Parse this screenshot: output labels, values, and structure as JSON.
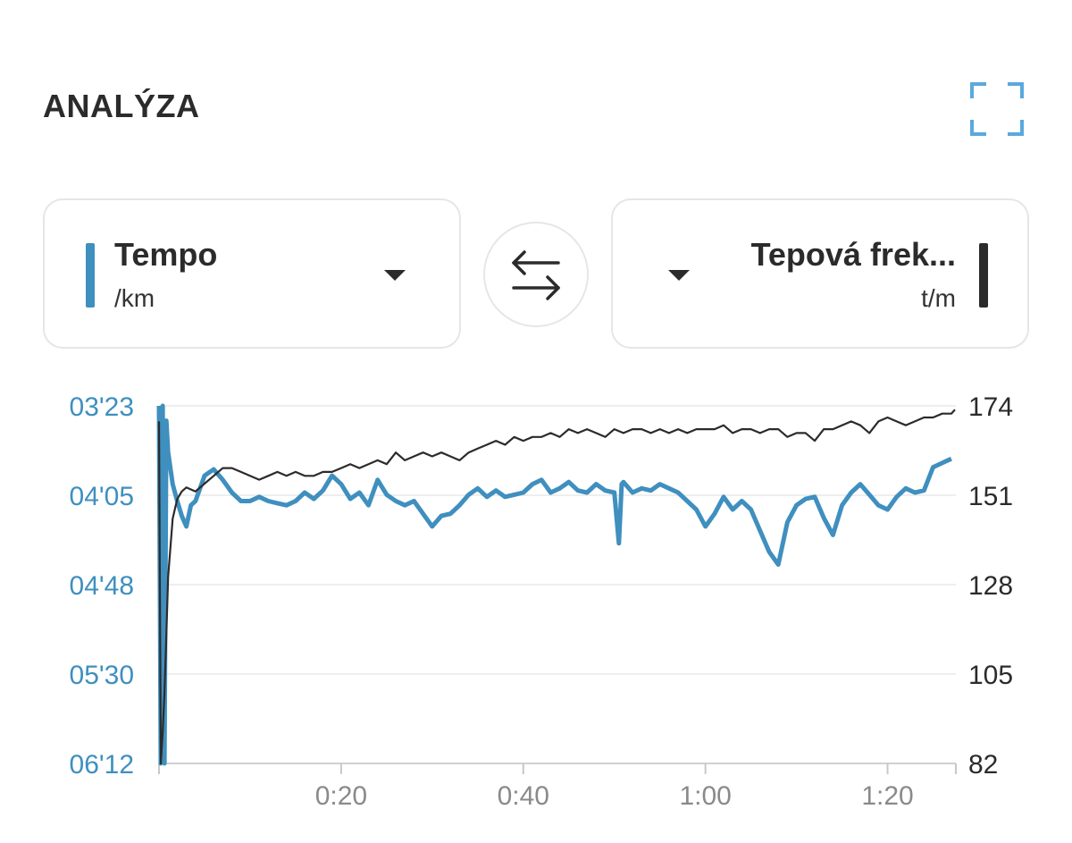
{
  "header": {
    "title": "ANALÝZA"
  },
  "icons": {
    "expand": "expand-corners-icon",
    "swap": "swap-arrows-icon",
    "dropdown": "caret-down-icon"
  },
  "colors": {
    "tempo": "#3f8fbf",
    "heart_rate": "#2b2b2b",
    "expand_icon": "#5aa9dd",
    "grid": "#e8e8e8"
  },
  "left_selector": {
    "title": "Tempo",
    "unit": "/km"
  },
  "right_selector": {
    "title": "Tepová frek...",
    "unit": "t/m"
  },
  "chart_data": {
    "type": "line",
    "x_ticks": [
      "0:20",
      "0:40",
      "1:00",
      "1:20"
    ],
    "x_tick_values_min": [
      20,
      40,
      60,
      80
    ],
    "x_range_min": [
      0,
      87.5
    ],
    "left_axis": {
      "ticks": [
        "03'23",
        "04'05",
        "04'48",
        "05'30",
        "06'12"
      ],
      "range_sec_per_km": [
        203,
        372
      ],
      "inverted": true
    },
    "right_axis": {
      "ticks": [
        "174",
        "151",
        "128",
        "105",
        "82"
      ],
      "range": [
        82,
        174
      ]
    },
    "grid": true,
    "series": [
      {
        "name": "Tempo",
        "axis": "left",
        "unit": "min/km",
        "x_min": [
          0,
          0.2,
          0.4,
          0.6,
          0.8,
          1.0,
          1.5,
          2,
          2.5,
          3,
          3.5,
          4,
          5,
          6,
          7,
          8,
          9,
          10,
          11,
          12,
          13,
          14,
          15,
          16,
          17,
          18,
          19,
          20,
          21,
          22,
          23,
          24,
          25,
          26,
          27,
          28,
          29,
          30,
          31,
          32,
          33,
          34,
          35,
          36,
          37,
          38,
          39,
          40,
          41,
          42,
          43,
          44,
          45,
          46,
          47,
          48,
          49,
          50,
          50.5,
          50.8,
          51,
          52,
          53,
          54,
          55,
          56,
          57,
          58,
          59,
          60,
          61,
          62,
          63,
          64,
          65,
          66,
          67,
          68,
          69,
          70,
          71,
          72,
          73,
          74,
          75,
          76,
          77,
          78,
          79,
          80,
          81,
          82,
          83,
          84,
          85,
          86,
          87
        ],
        "values_sec_per_km": [
          203,
          372,
          203,
          372,
          210,
          225,
          240,
          248,
          255,
          260,
          250,
          248,
          236,
          233,
          238,
          244,
          248,
          248,
          246,
          248,
          249,
          250,
          248,
          244,
          247,
          243,
          236,
          240,
          247,
          244,
          250,
          238,
          245,
          248,
          250,
          248,
          254,
          260,
          255,
          254,
          250,
          245,
          242,
          246,
          243,
          246,
          245,
          244,
          240,
          238,
          244,
          242,
          239,
          243,
          244,
          240,
          243,
          244,
          268,
          240,
          239,
          244,
          242,
          243,
          240,
          242,
          244,
          248,
          252,
          260,
          254,
          246,
          252,
          248,
          252,
          262,
          272,
          278,
          258,
          250,
          247,
          246,
          256,
          264,
          250,
          244,
          240,
          245,
          250,
          252,
          246,
          242,
          244,
          243,
          232,
          230,
          228
        ]
      },
      {
        "name": "Tepová frek...",
        "axis": "right",
        "unit": "t/m",
        "x_min": [
          0,
          0.2,
          0.4,
          0.6,
          0.8,
          1.0,
          1.5,
          2,
          2.5,
          3,
          4,
          5,
          6,
          7,
          8,
          9,
          10,
          11,
          12,
          13,
          14,
          15,
          16,
          17,
          18,
          19,
          20,
          21,
          22,
          23,
          24,
          25,
          26,
          27,
          28,
          29,
          30,
          31,
          32,
          33,
          34,
          35,
          36,
          37,
          38,
          39,
          40,
          41,
          42,
          43,
          44,
          45,
          46,
          47,
          48,
          49,
          50,
          51,
          52,
          53,
          54,
          55,
          56,
          57,
          58,
          59,
          60,
          61,
          62,
          63,
          64,
          65,
          66,
          67,
          68,
          69,
          70,
          71,
          72,
          73,
          74,
          75,
          76,
          77,
          78,
          79,
          80,
          81,
          82,
          83,
          84,
          85,
          86,
          87,
          87.4
        ],
        "values": [
          170,
          82,
          90,
          100,
          115,
          130,
          145,
          150,
          152,
          153,
          152,
          154,
          156,
          158,
          158,
          157,
          156,
          155,
          156,
          157,
          156,
          157,
          156,
          156,
          157,
          157,
          158,
          159,
          158,
          159,
          160,
          159,
          162,
          160,
          161,
          162,
          161,
          162,
          161,
          160,
          162,
          163,
          164,
          165,
          164,
          166,
          165,
          166,
          166,
          167,
          166,
          168,
          167,
          168,
          167,
          166,
          168,
          167,
          168,
          168,
          167,
          168,
          167,
          168,
          167,
          168,
          168,
          168,
          169,
          167,
          168,
          168,
          167,
          168,
          168,
          166,
          167,
          167,
          165,
          168,
          168,
          169,
          170,
          169,
          167,
          170,
          171,
          170,
          169,
          170,
          171,
          171,
          172,
          172,
          173
        ]
      }
    ]
  }
}
